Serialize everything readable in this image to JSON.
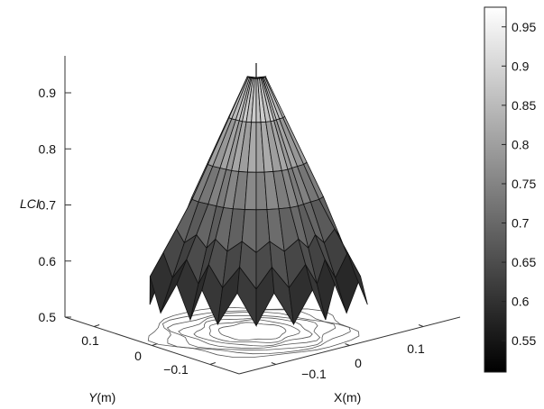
{
  "chart_data": {
    "type": "surface3d",
    "title": "",
    "zlabel": "LCI",
    "xlabel_prefix": "X",
    "xlabel_unit": "(m)",
    "ylabel_prefix": "Y",
    "ylabel_unit": "(m)",
    "z_ticks": [
      0.5,
      0.6,
      0.7,
      0.8,
      0.9
    ],
    "z_tick_labels": [
      "0.5",
      "0.6",
      "0.7",
      "0.8",
      "0.9"
    ],
    "x_ticks": [
      -0.1,
      0,
      0.1
    ],
    "x_tick_labels": [
      "−0.1",
      "0",
      "0.1"
    ],
    "y_ticks": [
      -0.1,
      0,
      0.1
    ],
    "y_tick_labels": [
      "−0.1",
      "0",
      "0.1"
    ],
    "zlim": [
      0.5,
      0.95
    ],
    "peak": {
      "x": 0,
      "y": 0,
      "z": 0.93
    },
    "colorbar": {
      "min": 0.51,
      "max": 0.975,
      "ticks": [
        0.55,
        0.6,
        0.65,
        0.7,
        0.75,
        0.8,
        0.85,
        0.9,
        0.95
      ],
      "tick_labels": [
        "0.55",
        "0.6",
        "0.65",
        "0.7",
        "0.75",
        "0.8",
        "0.85",
        "0.9",
        "0.95"
      ],
      "colormap": "gray"
    },
    "rings": [
      {
        "z": 0.93
      },
      {
        "z": 0.86
      },
      {
        "z": 0.78
      },
      {
        "z": 0.72
      },
      {
        "z": 0.66
      },
      {
        "z": 0.61
      },
      {
        "z": 0.56
      }
    ],
    "contours": [
      0.55,
      0.6,
      0.65,
      0.7,
      0.75,
      0.8,
      0.85
    ],
    "grid": false,
    "box": true
  }
}
